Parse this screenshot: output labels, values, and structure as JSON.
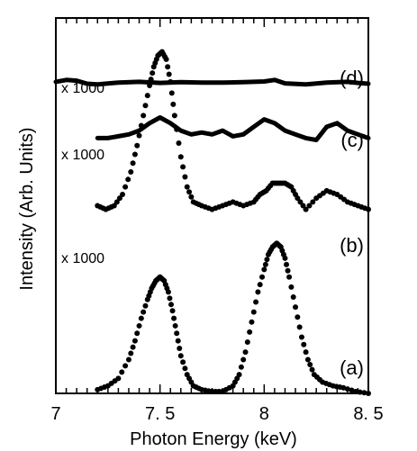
{
  "chart_data": {
    "type": "scatter",
    "title": "",
    "xlabel": "Photon Energy  (keV)",
    "ylabel": "Intensity (Arb. Units)",
    "xlim": [
      7,
      8.5
    ],
    "ylim": [
      0,
      1
    ],
    "x_ticks": [
      7,
      7.5,
      8,
      8.5
    ],
    "x_tick_labels": [
      "7",
      "7. 5",
      "8",
      "8. 5"
    ],
    "grid": false,
    "legend": "none",
    "series": [
      {
        "label": "(a)",
        "style": "dotted",
        "x": [
          7.2,
          7.25,
          7.3,
          7.35,
          7.38,
          7.41,
          7.44,
          7.46,
          7.48,
          7.5,
          7.52,
          7.54,
          7.56,
          7.58,
          7.6,
          7.63,
          7.66,
          7.7,
          7.75,
          7.8,
          7.85,
          7.88,
          7.91,
          7.94,
          7.97,
          8.0,
          8.02,
          8.04,
          8.06,
          8.08,
          8.1,
          8.12,
          8.15,
          8.18,
          8.21,
          8.24,
          8.28,
          8.33,
          8.38,
          8.44,
          8.5
        ],
        "y": [
          0.01,
          0.02,
          0.04,
          0.09,
          0.14,
          0.2,
          0.25,
          0.28,
          0.3,
          0.31,
          0.3,
          0.27,
          0.22,
          0.16,
          0.1,
          0.05,
          0.02,
          0.01,
          0.005,
          0.005,
          0.02,
          0.05,
          0.11,
          0.19,
          0.27,
          0.33,
          0.37,
          0.39,
          0.4,
          0.39,
          0.36,
          0.31,
          0.23,
          0.15,
          0.09,
          0.05,
          0.03,
          0.02,
          0.015,
          0.005,
          0.0
        ]
      },
      {
        "label": "(b)",
        "annotation": "x 1000",
        "style": "dotted",
        "x": [
          7.2,
          7.24,
          7.28,
          7.32,
          7.36,
          7.39,
          7.42,
          7.45,
          7.47,
          7.49,
          7.51,
          7.53,
          7.55,
          7.57,
          7.6,
          7.63,
          7.66,
          7.7,
          7.75,
          7.8,
          7.85,
          7.9,
          7.95,
          7.98,
          8.01,
          8.04,
          8.07,
          8.1,
          8.13,
          8.16,
          8.2,
          8.25,
          8.3,
          8.35,
          8.4,
          8.45,
          8.5
        ],
        "y": [
          0.5,
          0.49,
          0.5,
          0.53,
          0.59,
          0.66,
          0.74,
          0.82,
          0.87,
          0.9,
          0.91,
          0.89,
          0.83,
          0.74,
          0.63,
          0.55,
          0.51,
          0.5,
          0.49,
          0.5,
          0.51,
          0.5,
          0.51,
          0.53,
          0.54,
          0.56,
          0.56,
          0.56,
          0.55,
          0.52,
          0.49,
          0.52,
          0.54,
          0.53,
          0.51,
          0.5,
          0.49
        ]
      },
      {
        "label": "(c)",
        "annotation": "x 1000",
        "style": "solid",
        "x": [
          7.2,
          7.25,
          7.3,
          7.35,
          7.4,
          7.45,
          7.5,
          7.55,
          7.6,
          7.65,
          7.7,
          7.75,
          7.8,
          7.85,
          7.9,
          7.95,
          8.0,
          8.05,
          8.1,
          8.15,
          8.2,
          8.25,
          8.3,
          8.35,
          8.4,
          8.45,
          8.5
        ],
        "y": [
          0.68,
          0.68,
          0.685,
          0.69,
          0.7,
          0.72,
          0.735,
          0.72,
          0.7,
          0.69,
          0.695,
          0.69,
          0.7,
          0.685,
          0.69,
          0.71,
          0.73,
          0.72,
          0.7,
          0.69,
          0.68,
          0.675,
          0.71,
          0.72,
          0.7,
          0.69,
          0.68
        ]
      },
      {
        "label": "(d)",
        "annotation": "x 1000",
        "style": "solid",
        "x": [
          7.0,
          7.05,
          7.1,
          7.15,
          7.2,
          7.3,
          7.4,
          7.5,
          7.6,
          7.7,
          7.8,
          7.9,
          8.0,
          8.05,
          8.1,
          8.2,
          8.3,
          8.4,
          8.45,
          8.5
        ],
        "y": [
          0.83,
          0.835,
          0.833,
          0.825,
          0.823,
          0.828,
          0.83,
          0.827,
          0.829,
          0.828,
          0.828,
          0.829,
          0.831,
          0.835,
          0.826,
          0.823,
          0.828,
          0.83,
          0.827,
          0.825
        ]
      }
    ]
  }
}
